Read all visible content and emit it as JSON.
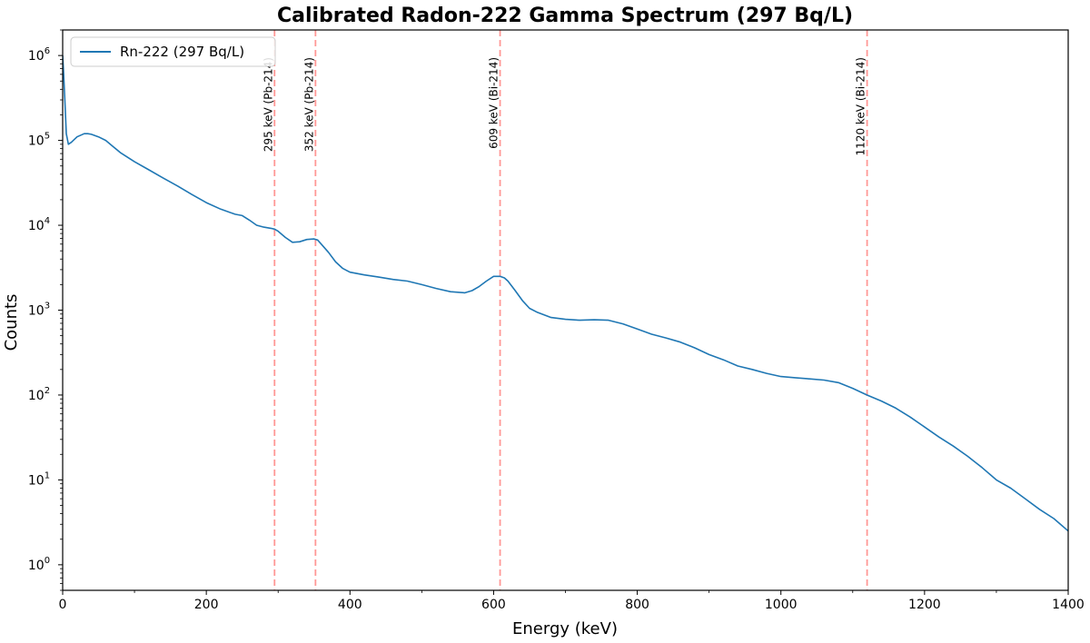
{
  "chart_data": {
    "type": "line",
    "title": "Calibrated Radon-222 Gamma Spectrum (297 Bq/L)",
    "xlabel": "Energy (keV)",
    "ylabel": "Counts",
    "xlim": [
      0,
      1400
    ],
    "ylim": [
      0.5,
      2000000
    ],
    "yscale": "log",
    "grid": false,
    "legend_position": "top-left",
    "x_ticks": [
      0,
      200,
      400,
      600,
      800,
      1000,
      1200,
      1400
    ],
    "y_ticks": [
      {
        "value": 1,
        "base": "10",
        "exp": "0"
      },
      {
        "value": 10,
        "base": "10",
        "exp": "1"
      },
      {
        "value": 100,
        "base": "10",
        "exp": "2"
      },
      {
        "value": 1000,
        "base": "10",
        "exp": "3"
      },
      {
        "value": 10000,
        "base": "10",
        "exp": "4"
      },
      {
        "value": 100000,
        "base": "10",
        "exp": "5"
      },
      {
        "value": 1000000,
        "base": "10",
        "exp": "6"
      }
    ],
    "series": [
      {
        "name": "Rn-222 (297 Bq/L)",
        "color": "#1f77b4",
        "x": [
          0,
          1,
          3,
          5,
          8,
          12,
          20,
          30,
          35,
          40,
          50,
          60,
          70,
          80,
          100,
          120,
          140,
          160,
          180,
          200,
          220,
          240,
          250,
          260,
          270,
          280,
          290,
          295,
          300,
          310,
          320,
          330,
          340,
          350,
          355,
          360,
          370,
          380,
          390,
          400,
          420,
          440,
          460,
          480,
          500,
          520,
          540,
          560,
          570,
          580,
          590,
          600,
          609,
          615,
          620,
          630,
          640,
          650,
          660,
          680,
          700,
          720,
          740,
          760,
          780,
          800,
          820,
          840,
          860,
          880,
          900,
          920,
          940,
          960,
          980,
          1000,
          1020,
          1040,
          1060,
          1080,
          1100,
          1120,
          1140,
          1160,
          1180,
          1200,
          1220,
          1240,
          1260,
          1280,
          1300,
          1320,
          1340,
          1360,
          1380,
          1400
        ],
        "y": [
          1000000,
          700000,
          300000,
          120000,
          90000,
          95000,
          110000,
          120000,
          120000,
          118000,
          110000,
          100000,
          85000,
          72000,
          56000,
          45000,
          36000,
          29000,
          23000,
          18500,
          15500,
          13500,
          13000,
          11500,
          10000,
          9500,
          9200,
          9000,
          8500,
          7200,
          6300,
          6400,
          6800,
          6900,
          6700,
          6000,
          4800,
          3700,
          3100,
          2800,
          2600,
          2450,
          2300,
          2200,
          2000,
          1800,
          1650,
          1600,
          1700,
          1900,
          2200,
          2500,
          2500,
          2400,
          2200,
          1700,
          1300,
          1050,
          950,
          820,
          780,
          760,
          770,
          760,
          690,
          600,
          520,
          470,
          420,
          360,
          300,
          260,
          220,
          200,
          180,
          165,
          160,
          155,
          150,
          140,
          120,
          100,
          85,
          70,
          55,
          42,
          32,
          25,
          19,
          14,
          10,
          8,
          6,
          4.5,
          3.5,
          2.5
        ]
      }
    ],
    "annotations": [
      {
        "x": 295,
        "label": "295 keV (Pb-214)"
      },
      {
        "x": 352,
        "label": "352 keV (Pb-214)"
      },
      {
        "x": 609,
        "label": "609 keV (Bi-214)"
      },
      {
        "x": 1120,
        "label": "1120 keV (Bi-214)"
      }
    ],
    "annotation_color": "#ff9896"
  }
}
